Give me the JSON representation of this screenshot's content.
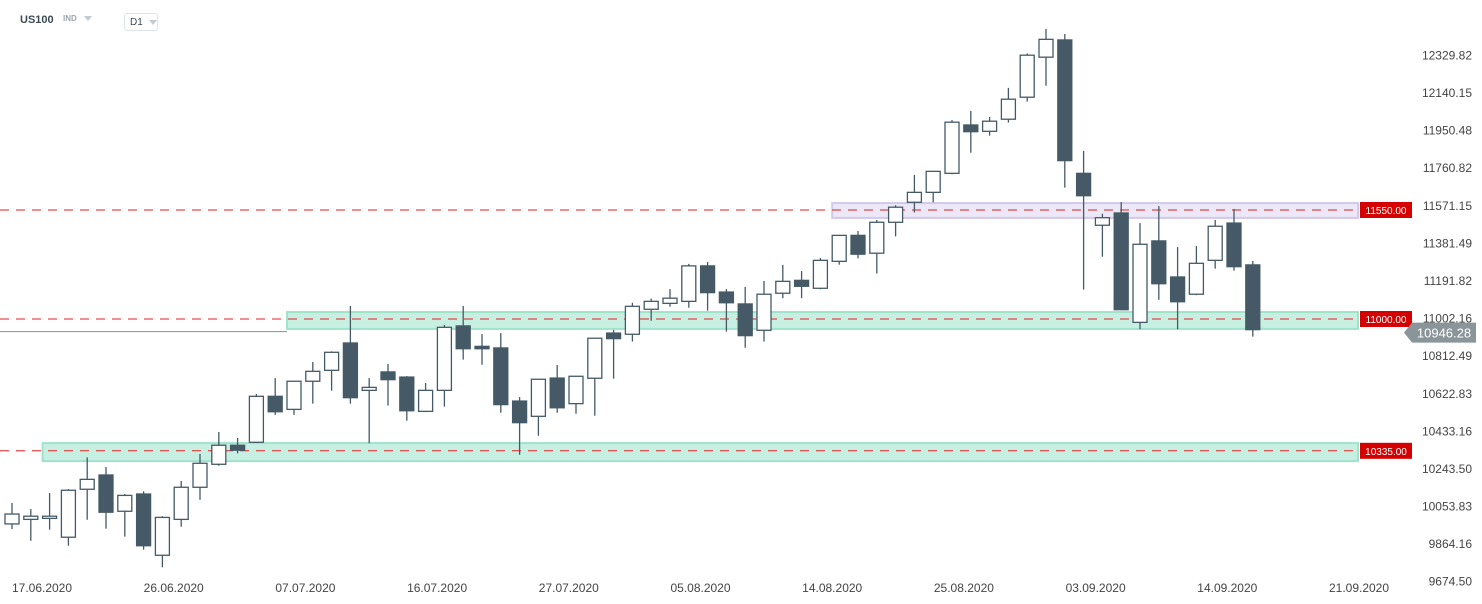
{
  "header": {
    "symbol": "US100",
    "instrument_type": "IND",
    "timeframe": "D1"
  },
  "colors": {
    "bull_body": "#ffffff",
    "bear_body": "#455a66",
    "outline": "#455a66",
    "level_line": "#e02020",
    "level_tag": "#d50000",
    "price_tag": "#8a9599",
    "green_zone": "#c8f0e2",
    "green_zone_border": "#9fe3cb",
    "purple_zone": "#ece8f7",
    "purple_zone_border": "#d3c9ec"
  },
  "chart_data": {
    "type": "candlestick",
    "title": "US100 D1",
    "ylim": [
      9600,
      12480
    ],
    "y_ticks": [
      "12329.82",
      "12140.15",
      "11950.48",
      "11760.82",
      "11571.15",
      "11381.49",
      "11191.82",
      "11002.16",
      "10812.49",
      "10622.83",
      "10433.16",
      "10243.50",
      "10053.83",
      "9864.16",
      "9674.50"
    ],
    "x_tick_labels": [
      "17.06.2020",
      "26.06.2020",
      "07.07.2020",
      "16.07.2020",
      "27.07.2020",
      "05.08.2020",
      "14.08.2020",
      "25.08.2020",
      "03.09.2020",
      "14.09.2020",
      "21.09.2020"
    ],
    "candles_ohlc": [
      [
        9966,
        10072,
        9940,
        10016
      ],
      [
        9989,
        10041,
        9881,
        10005
      ],
      [
        9994,
        10122,
        9937,
        10005
      ],
      [
        9899,
        10142,
        9856,
        10136
      ],
      [
        10141,
        10302,
        9987,
        10191
      ],
      [
        10213,
        10253,
        9942,
        10025
      ],
      [
        10030,
        10117,
        9902,
        10110
      ],
      [
        10117,
        10131,
        9836,
        9856
      ],
      [
        9808,
        10005,
        9747,
        9999
      ],
      [
        9989,
        10183,
        9952,
        10151
      ],
      [
        10151,
        10319,
        10088,
        10272
      ],
      [
        10267,
        10430,
        10260,
        10363
      ],
      [
        10363,
        10400,
        10322,
        10338
      ],
      [
        10378,
        10622,
        10374,
        10610
      ],
      [
        10610,
        10702,
        10516,
        10532
      ],
      [
        10544,
        10687,
        10516,
        10686
      ],
      [
        10686,
        10783,
        10573,
        10736
      ],
      [
        10741,
        10837,
        10638,
        10832
      ],
      [
        10879,
        11066,
        10573,
        10603
      ],
      [
        10640,
        10702,
        10373,
        10655
      ],
      [
        10733,
        10773,
        10563,
        10694
      ],
      [
        10707,
        10712,
        10487,
        10537
      ],
      [
        10534,
        10677,
        10530,
        10640
      ],
      [
        10640,
        10970,
        10558,
        10958
      ],
      [
        10965,
        11066,
        10795,
        10850
      ],
      [
        10862,
        10924,
        10769,
        10850
      ],
      [
        10854,
        10929,
        10527,
        10568
      ],
      [
        10586,
        10606,
        10315,
        10477
      ],
      [
        10509,
        10697,
        10411,
        10696
      ],
      [
        10702,
        10768,
        10527,
        10552
      ],
      [
        10573,
        10712,
        10522,
        10711
      ],
      [
        10701,
        10904,
        10512,
        10903
      ],
      [
        10929,
        10945,
        10699,
        10901
      ],
      [
        10923,
        11082,
        10886,
        11064
      ],
      [
        11049,
        11103,
        10991,
        11089
      ],
      [
        11079,
        11151,
        11062,
        11105
      ],
      [
        11089,
        11278,
        11057,
        11268
      ],
      [
        11268,
        11288,
        11042,
        11133
      ],
      [
        11136,
        11151,
        10936,
        11082
      ],
      [
        11076,
        11162,
        10855,
        10916
      ],
      [
        10943,
        11192,
        10886,
        11125
      ],
      [
        11130,
        11273,
        11105,
        11190
      ],
      [
        11195,
        11242,
        11105,
        11165
      ],
      [
        11155,
        11308,
        11150,
        11296
      ],
      [
        11291,
        11424,
        11274,
        11422
      ],
      [
        11422,
        11444,
        11306,
        11327
      ],
      [
        11332,
        11500,
        11229,
        11488
      ],
      [
        11488,
        11574,
        11417,
        11564
      ],
      [
        11589,
        11727,
        11538,
        11639
      ],
      [
        11639,
        11745,
        11589,
        11745
      ],
      [
        11735,
        12004,
        11730,
        11993
      ],
      [
        11979,
        12050,
        11839,
        11945
      ],
      [
        11947,
        12019,
        11925,
        11998
      ],
      [
        12008,
        12166,
        11991,
        12109
      ],
      [
        12119,
        12340,
        12097,
        12331
      ],
      [
        12321,
        12463,
        12177,
        12411
      ],
      [
        12408,
        12438,
        11663,
        11799
      ],
      [
        11735,
        11848,
        11148,
        11622
      ],
      [
        11473,
        11531,
        11314,
        11511
      ],
      [
        11535,
        11590,
        11045,
        11047
      ],
      [
        10983,
        11484,
        10948,
        11377
      ],
      [
        11394,
        11570,
        11097,
        11178
      ],
      [
        11212,
        11363,
        10948,
        11087
      ],
      [
        11125,
        11368,
        11120,
        11281
      ],
      [
        11296,
        11500,
        11254,
        11468
      ],
      [
        11484,
        11555,
        11244,
        11264
      ],
      [
        11273,
        11293,
        10911,
        10946.28
      ]
    ],
    "levels": [
      {
        "value": 11550,
        "label": "11550.00",
        "zone": [
          11510,
          11585
        ],
        "zone_color": "purple",
        "zone_start_candle": 44
      },
      {
        "value": 11000,
        "label": "11000.00",
        "zone": [
          10950,
          11035
        ],
        "zone_color": "green",
        "zone_start_candle": 15
      },
      {
        "value": 10335,
        "label": "10335.00",
        "zone": [
          10283,
          10374
        ],
        "zone_color": "green",
        "zone_start_candle": 2
      }
    ],
    "current_price": {
      "value": 10946.28,
      "label": "10946.28"
    }
  }
}
